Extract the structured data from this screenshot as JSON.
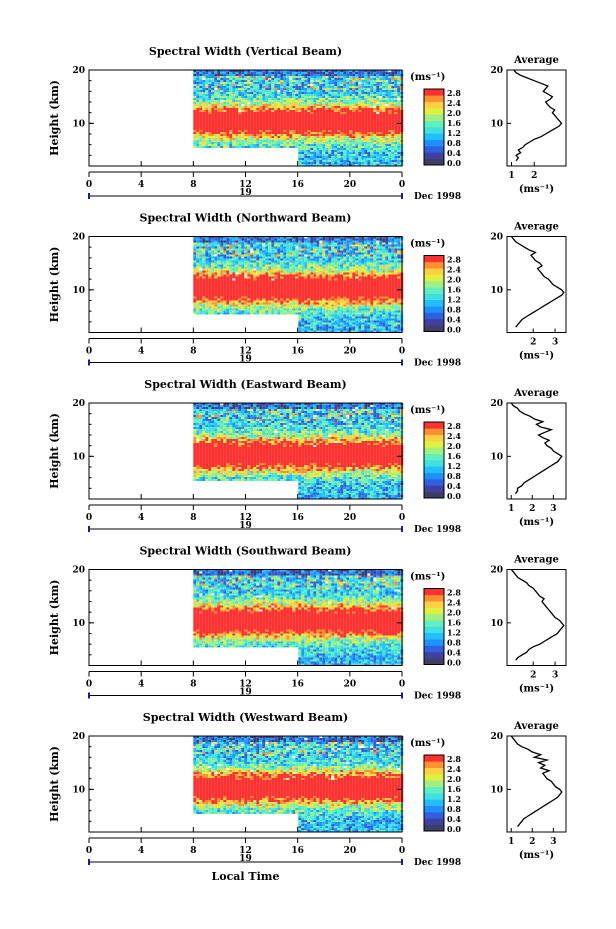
{
  "figure": {
    "xlabel": "Local Time",
    "colorbar_unit": "(ms⁻¹)",
    "colorbar_ticks": [
      "0.0",
      "0.4",
      "0.8",
      "1.2",
      "1.6",
      "2.0",
      "2.4",
      "2.8"
    ],
    "x_ticks": [
      "0",
      "4",
      "8",
      "12",
      "16",
      "20",
      "0"
    ],
    "day_label": "19",
    "month_label": "Dec 1998",
    "ylabel": "Height (km)",
    "y_ticks": [
      "10",
      "20"
    ],
    "avg_title": "Average",
    "avg_unit": "(ms⁻¹)",
    "colors": [
      "#3d3d66",
      "#4040a0",
      "#3060e0",
      "#1e90ff",
      "#20c0ff",
      "#40e0e0",
      "#60f0c0",
      "#a0f080",
      "#e0f040",
      "#ffd040",
      "#ff9030",
      "#ff3030"
    ]
  },
  "chart_data": [
    {
      "type": "heatmap",
      "title": "Spectral Width (Vertical Beam)",
      "xlim": [
        0,
        24
      ],
      "ylim": [
        2,
        20
      ],
      "data_start_hour": 8,
      "avg_xticks": [
        "1",
        "2"
      ],
      "avg_xlim": [
        0.8,
        3.4
      ],
      "avg_profile": {
        "height": [
          3,
          3.5,
          4,
          4.5,
          5,
          5.5,
          6,
          6.5,
          7,
          7.5,
          8,
          8.5,
          9,
          9.5,
          10,
          10.5,
          11,
          11.5,
          12,
          12.5,
          13,
          13.5,
          14,
          14.5,
          15,
          15.5,
          16,
          16.5,
          17,
          17.5,
          18,
          18.5,
          19,
          19.5,
          20
        ],
        "width": [
          1.2,
          1.3,
          1.2,
          1.4,
          1.3,
          1.5,
          1.6,
          1.8,
          2.0,
          2.3,
          2.5,
          2.7,
          2.9,
          3.1,
          3.2,
          3.1,
          3.0,
          2.9,
          2.8,
          2.9,
          2.7,
          2.6,
          2.5,
          2.7,
          2.8,
          2.6,
          2.4,
          2.5,
          2.6,
          2.3,
          2.0,
          1.7,
          1.4,
          1.2,
          1.1
        ]
      }
    },
    {
      "type": "heatmap",
      "title": "Spectral Width (Northward Beam)",
      "xlim": [
        0,
        24
      ],
      "ylim": [
        2,
        20
      ],
      "data_start_hour": 8,
      "avg_xticks": [
        "2",
        "3"
      ],
      "avg_xlim": [
        0.8,
        3.5
      ],
      "avg_profile": {
        "height": [
          3,
          3.5,
          4,
          4.5,
          5,
          5.5,
          6,
          6.5,
          7,
          7.5,
          8,
          8.5,
          9,
          9.5,
          10,
          10.5,
          11,
          11.5,
          12,
          12.5,
          13,
          13.5,
          14,
          14.5,
          15,
          15.5,
          16,
          16.5,
          17,
          17.5,
          18,
          18.5,
          19,
          19.5,
          20
        ],
        "width": [
          1.2,
          1.3,
          1.4,
          1.5,
          1.7,
          1.9,
          2.1,
          2.3,
          2.5,
          2.7,
          2.9,
          3.1,
          3.3,
          3.4,
          3.3,
          3.1,
          2.9,
          2.8,
          2.7,
          2.5,
          2.4,
          2.3,
          2.2,
          2.4,
          2.3,
          2.1,
          2.0,
          1.9,
          2.1,
          1.8,
          1.6,
          1.4,
          1.2,
          1.1,
          1.0
        ]
      }
    },
    {
      "type": "heatmap",
      "title": "Spectral Width (Eastward Beam)",
      "xlim": [
        0,
        24
      ],
      "ylim": [
        2,
        20
      ],
      "data_start_hour": 8,
      "avg_xticks": [
        "1",
        "2",
        "3"
      ],
      "avg_xlim": [
        0.8,
        3.6
      ],
      "avg_profile": {
        "height": [
          3,
          3.5,
          4,
          4.5,
          5,
          5.5,
          6,
          6.5,
          7,
          7.5,
          8,
          8.5,
          9,
          9.5,
          10,
          10.5,
          11,
          11.5,
          12,
          12.5,
          13,
          13.5,
          14,
          14.5,
          15,
          15.5,
          16,
          16.5,
          17,
          17.5,
          18,
          18.5,
          19,
          19.5,
          20
        ],
        "width": [
          1.2,
          1.3,
          1.3,
          1.5,
          1.6,
          1.8,
          2.0,
          2.2,
          2.4,
          2.6,
          2.8,
          3.0,
          3.2,
          3.3,
          3.4,
          3.2,
          3.0,
          2.9,
          2.7,
          2.6,
          2.8,
          2.5,
          2.3,
          2.6,
          2.9,
          2.4,
          2.2,
          2.5,
          2.1,
          1.9,
          1.6,
          1.4,
          1.3,
          1.1,
          1.0
        ]
      }
    },
    {
      "type": "heatmap",
      "title": "Spectral Width (Southward Beam)",
      "xlim": [
        0,
        24
      ],
      "ylim": [
        2,
        20
      ],
      "data_start_hour": 8,
      "avg_xticks": [
        "2",
        "3"
      ],
      "avg_xlim": [
        0.8,
        3.5
      ],
      "avg_profile": {
        "height": [
          3,
          3.5,
          4,
          4.5,
          5,
          5.5,
          6,
          6.5,
          7,
          7.5,
          8,
          8.5,
          9,
          9.5,
          10,
          10.5,
          11,
          11.5,
          12,
          12.5,
          13,
          13.5,
          14,
          14.5,
          15,
          15.5,
          16,
          16.5,
          17,
          17.5,
          18,
          18.5,
          19,
          19.5,
          20
        ],
        "width": [
          1.2,
          1.3,
          1.5,
          1.7,
          1.8,
          2.0,
          2.3,
          2.5,
          2.7,
          2.9,
          3.1,
          3.2,
          3.3,
          3.4,
          3.3,
          3.2,
          3.0,
          2.9,
          2.8,
          2.7,
          2.6,
          2.5,
          2.4,
          2.5,
          2.3,
          2.2,
          2.1,
          2.0,
          1.8,
          1.7,
          1.5,
          1.3,
          1.2,
          1.1,
          1.0
        ]
      }
    },
    {
      "type": "heatmap",
      "title": "Spectral Width (Westward Beam)",
      "xlim": [
        0,
        24
      ],
      "ylim": [
        2,
        20
      ],
      "data_start_hour": 8,
      "avg_xticks": [
        "1",
        "2",
        "3"
      ],
      "avg_xlim": [
        0.8,
        3.6
      ],
      "avg_profile": {
        "height": [
          3,
          3.5,
          4,
          4.5,
          5,
          5.5,
          6,
          6.5,
          7,
          7.5,
          8,
          8.5,
          9,
          9.5,
          10,
          10.5,
          11,
          11.5,
          12,
          12.5,
          13,
          13.5,
          14,
          14.5,
          15,
          15.5,
          16,
          16.5,
          17,
          17.5,
          18,
          18.5,
          19,
          19.5,
          20
        ],
        "width": [
          1.3,
          1.4,
          1.5,
          1.6,
          1.8,
          2.0,
          2.2,
          2.4,
          2.6,
          2.8,
          3.0,
          3.2,
          3.3,
          3.4,
          3.3,
          3.1,
          3.0,
          2.9,
          2.7,
          2.6,
          2.5,
          2.8,
          2.4,
          2.6,
          2.3,
          2.7,
          2.1,
          2.4,
          2.0,
          1.8,
          1.5,
          1.3,
          1.2,
          1.1,
          1.0
        ]
      }
    }
  ]
}
